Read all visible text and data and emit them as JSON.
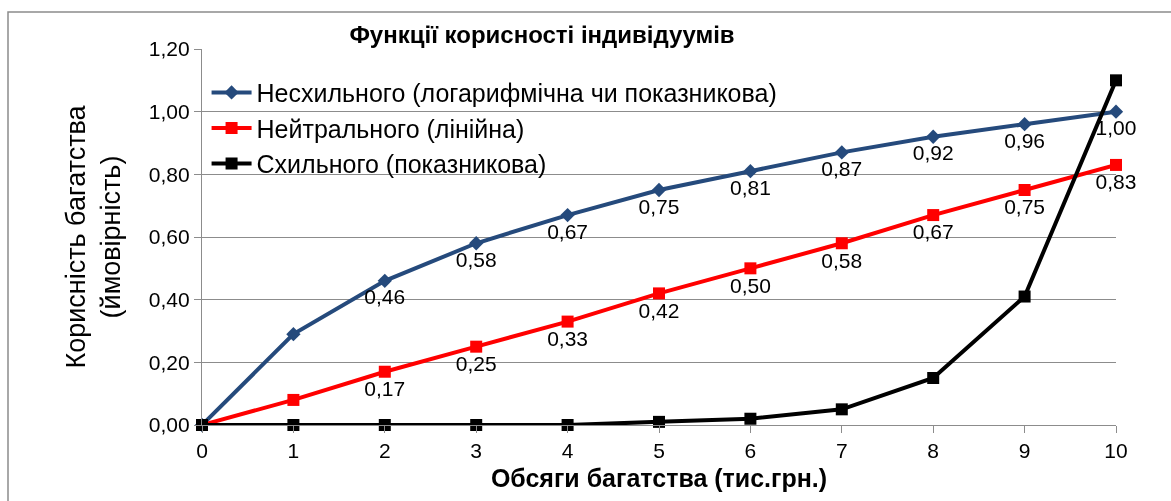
{
  "chart_data": {
    "type": "line",
    "title": "Функції корисності індивідуумів",
    "xlabel": "Обсяги багатства (тис.грн.)",
    "ylabel": "Корисність багатства\n(ймовірність)",
    "x": [
      0,
      1,
      2,
      3,
      4,
      5,
      6,
      7,
      8,
      9,
      10
    ],
    "xlim": [
      0,
      10
    ],
    "xticks": [
      0,
      1,
      2,
      3,
      4,
      5,
      6,
      7,
      8,
      9,
      10
    ],
    "ylim": [
      0,
      1.2
    ],
    "yticks": [
      {
        "value": 0,
        "label": "0,00"
      },
      {
        "value": 0.2,
        "label": "0,20"
      },
      {
        "value": 0.4,
        "label": "0,40"
      },
      {
        "value": 0.6,
        "label": "0,60"
      },
      {
        "value": 0.8,
        "label": "0,80"
      },
      {
        "value": 1.0,
        "label": "1,00"
      },
      {
        "value": 1.2,
        "label": "1,20"
      }
    ],
    "grid": "y",
    "legend": "top left",
    "line_style": "solid",
    "series": [
      {
        "name": "Несхильного (логарифмічна чи показникова)",
        "color": "#254a7c",
        "marker": "diamond",
        "values": [
          0,
          0.29,
          0.46,
          0.58,
          0.67,
          0.75,
          0.81,
          0.87,
          0.92,
          0.96,
          1.0
        ],
        "value_labels": [
          null,
          null,
          "0,46",
          "0,58",
          "0,67",
          "0,75",
          "0,81",
          "0,87",
          "0,92",
          "0,96",
          "1,00"
        ]
      },
      {
        "name": "Нейтрального (лінійна)",
        "color": "#ff0000",
        "marker": "square",
        "values": [
          0,
          0.08,
          0.17,
          0.25,
          0.33,
          0.42,
          0.5,
          0.58,
          0.67,
          0.75,
          0.83
        ],
        "value_labels": [
          null,
          null,
          "0,17",
          "0,25",
          "0,33",
          "0,42",
          "0,50",
          "0,58",
          "0,67",
          "0,75",
          "0,83"
        ]
      },
      {
        "name": "Схильного (показникова)",
        "color": "#000000",
        "marker": "square",
        "values": [
          0,
          0,
          0,
          0,
          0,
          0.01,
          0.02,
          0.05,
          0.15,
          0.41,
          1.1
        ]
      }
    ]
  }
}
